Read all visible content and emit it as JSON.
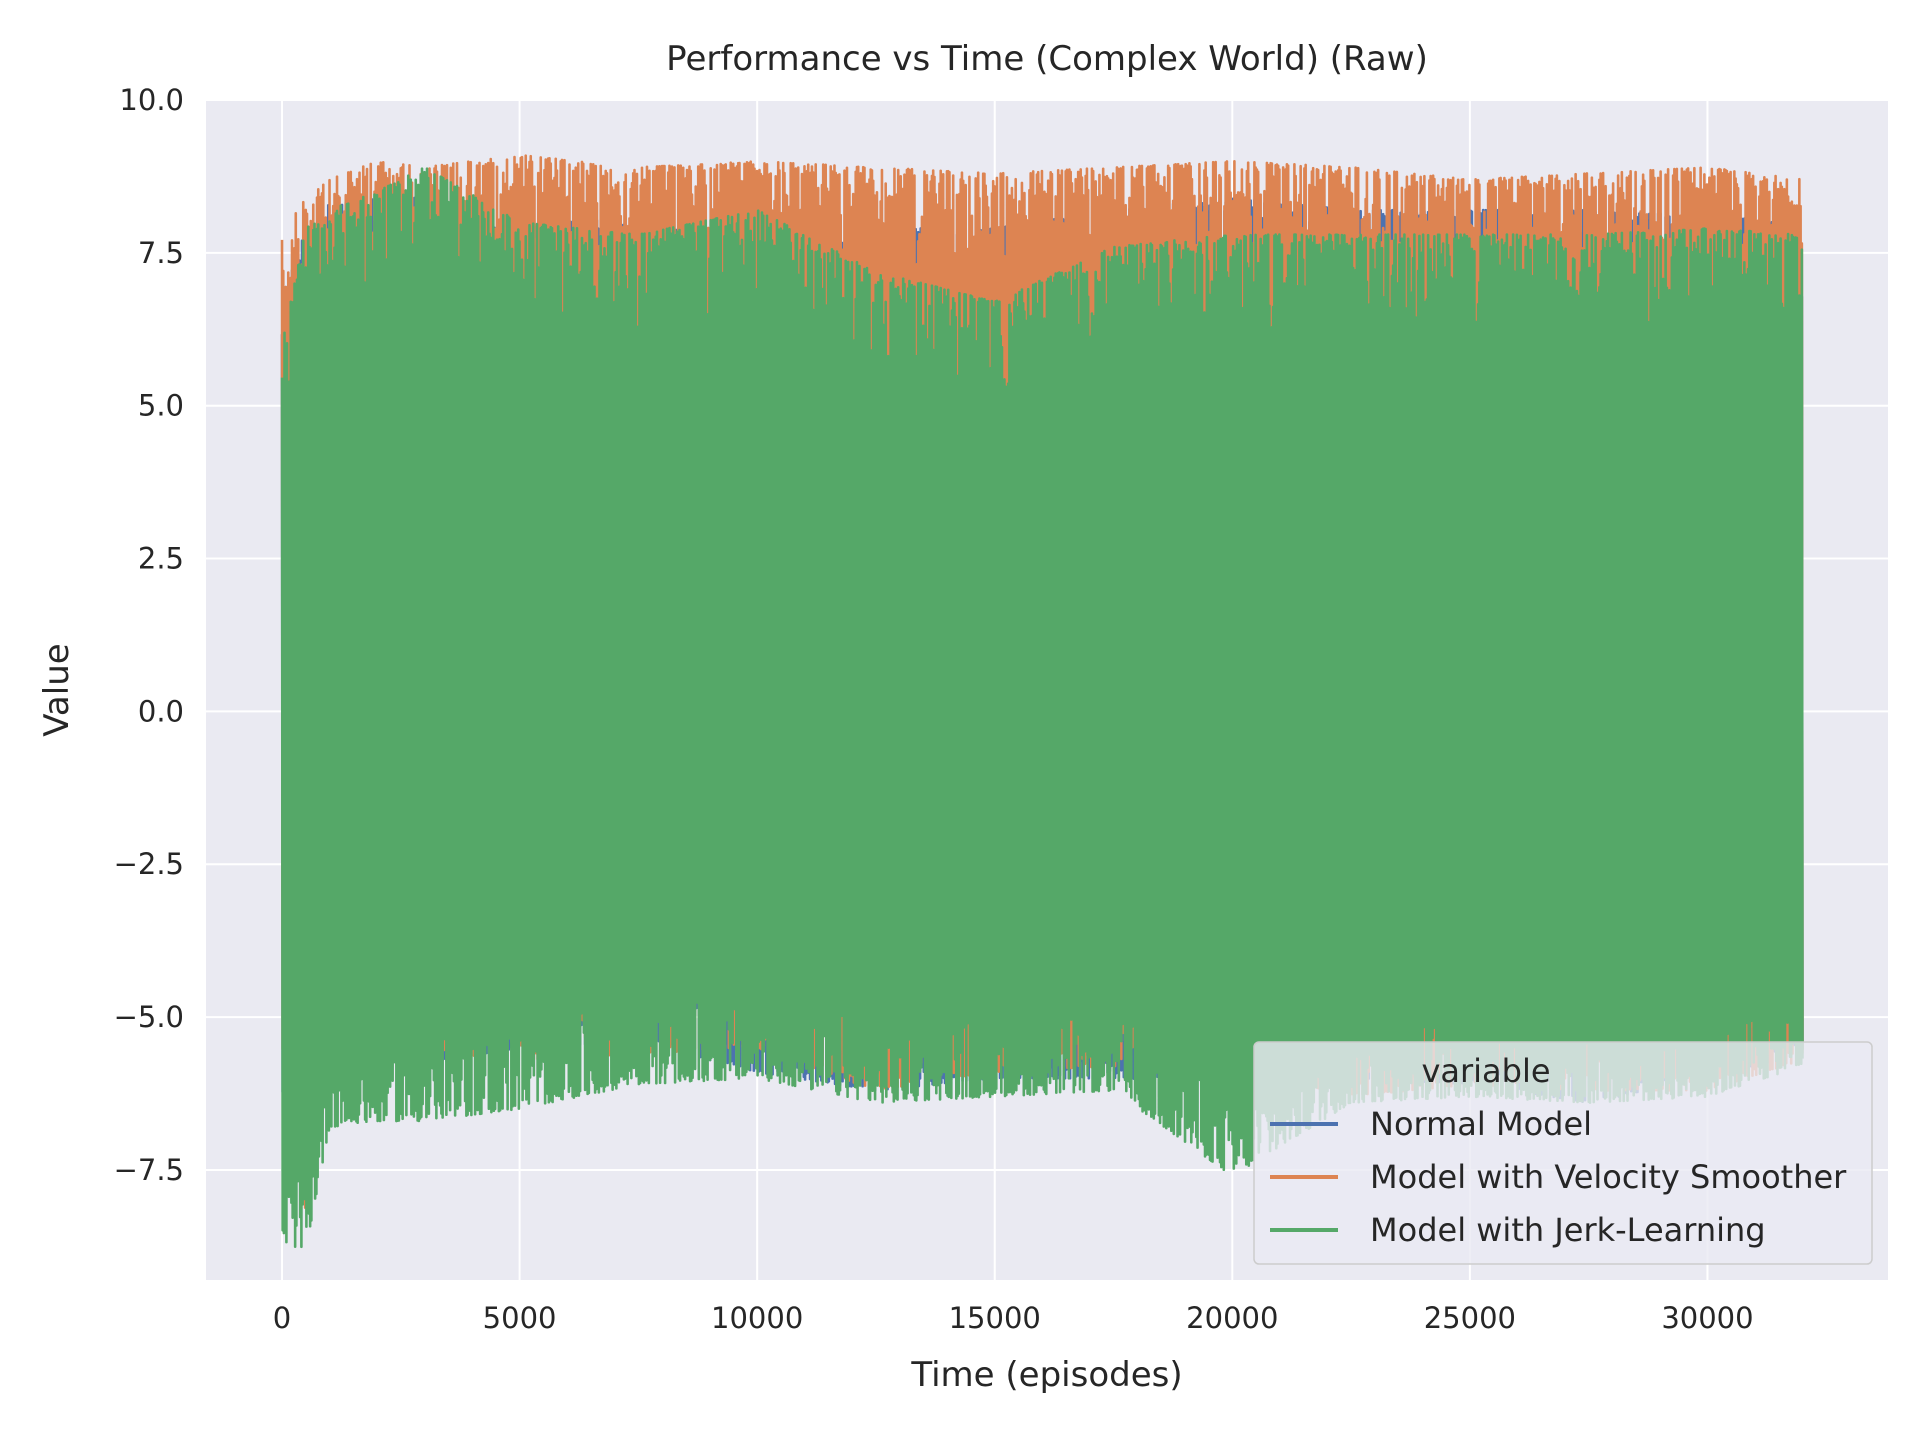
{
  "chart_data": {
    "type": "line",
    "title": "Performance vs Time (Complex World) (Raw)",
    "xlabel": "Time (episodes)",
    "ylabel": "Value",
    "xlim": [
      -1600,
      33800
    ],
    "ylim": [
      -9.3,
      10.0
    ],
    "xticks": [
      0,
      5000,
      10000,
      15000,
      20000,
      25000,
      30000
    ],
    "xtick_labels": [
      "0",
      "5000",
      "10000",
      "15000",
      "20000",
      "25000",
      "30000"
    ],
    "yticks": [
      -7.5,
      -5.0,
      -2.5,
      0.0,
      2.5,
      5.0,
      7.5,
      10.0
    ],
    "ytick_labels": [
      "−7.5",
      "−5.0",
      "−2.5",
      "0.0",
      "2.5",
      "5.0",
      "7.5",
      "10.0"
    ],
    "grid": true,
    "legend": {
      "title": "variable",
      "placement": "lower right"
    },
    "series": [
      {
        "name": "Normal Model",
        "color": "#4c72b0",
        "x": [
          0,
          500,
          1000,
          2000,
          3000,
          5000,
          7500,
          10000,
          12500,
          15000,
          17500,
          20000,
          22500,
          25000,
          27500,
          30000,
          32000
        ],
        "upper": [
          6.8,
          7.9,
          8.3,
          8.4,
          8.4,
          8.1,
          8.0,
          7.9,
          7.9,
          7.9,
          8.2,
          8.4,
          8.2,
          8.2,
          8.2,
          8.1,
          8.0
        ],
        "lower": [
          -6.3,
          -7.2,
          -6.0,
          -5.8,
          -5.8,
          -5.5,
          -5.4,
          -5.9,
          -6.2,
          -6.0,
          -6.0,
          -6.2,
          -6.0,
          -6.1,
          -6.4,
          -6.0,
          -5.6
        ]
      },
      {
        "name": "Model with Velocity Smoother",
        "color": "#dd8452",
        "x": [
          0,
          500,
          1000,
          2000,
          3000,
          5000,
          7500,
          10000,
          12500,
          15000,
          17500,
          20000,
          22500,
          25000,
          27500,
          30000,
          32000
        ],
        "upper": [
          7.8,
          8.4,
          8.7,
          9.0,
          8.9,
          9.1,
          8.9,
          9.0,
          8.9,
          8.8,
          8.9,
          9.0,
          8.9,
          8.7,
          8.8,
          8.9,
          8.7
        ],
        "lower": [
          -5.5,
          -8.2,
          -6.0,
          -5.8,
          -5.6,
          -5.7,
          -5.6,
          -5.5,
          -6.2,
          -5.9,
          -5.8,
          -5.8,
          -6.3,
          -6.1,
          -6.2,
          -6.2,
          -5.7
        ]
      },
      {
        "name": "Model with Jerk-Learning",
        "color": "#55a868",
        "x": [
          0,
          500,
          1000,
          2000,
          3000,
          5000,
          7500,
          10000,
          12500,
          15000,
          17500,
          20000,
          22500,
          25000,
          27500,
          30000,
          32000
        ],
        "upper": [
          6.0,
          7.9,
          8.2,
          8.5,
          8.9,
          8.0,
          7.8,
          8.2,
          7.2,
          6.7,
          7.6,
          7.8,
          7.8,
          7.8,
          7.8,
          7.9,
          7.8
        ],
        "lower": [
          -8.7,
          -8.8,
          -6.8,
          -6.7,
          -6.7,
          -6.5,
          -6.1,
          -6.0,
          -6.4,
          -6.3,
          -6.2,
          -7.6,
          -6.4,
          -6.3,
          -6.4,
          -6.3,
          -5.8
        ]
      }
    ]
  }
}
